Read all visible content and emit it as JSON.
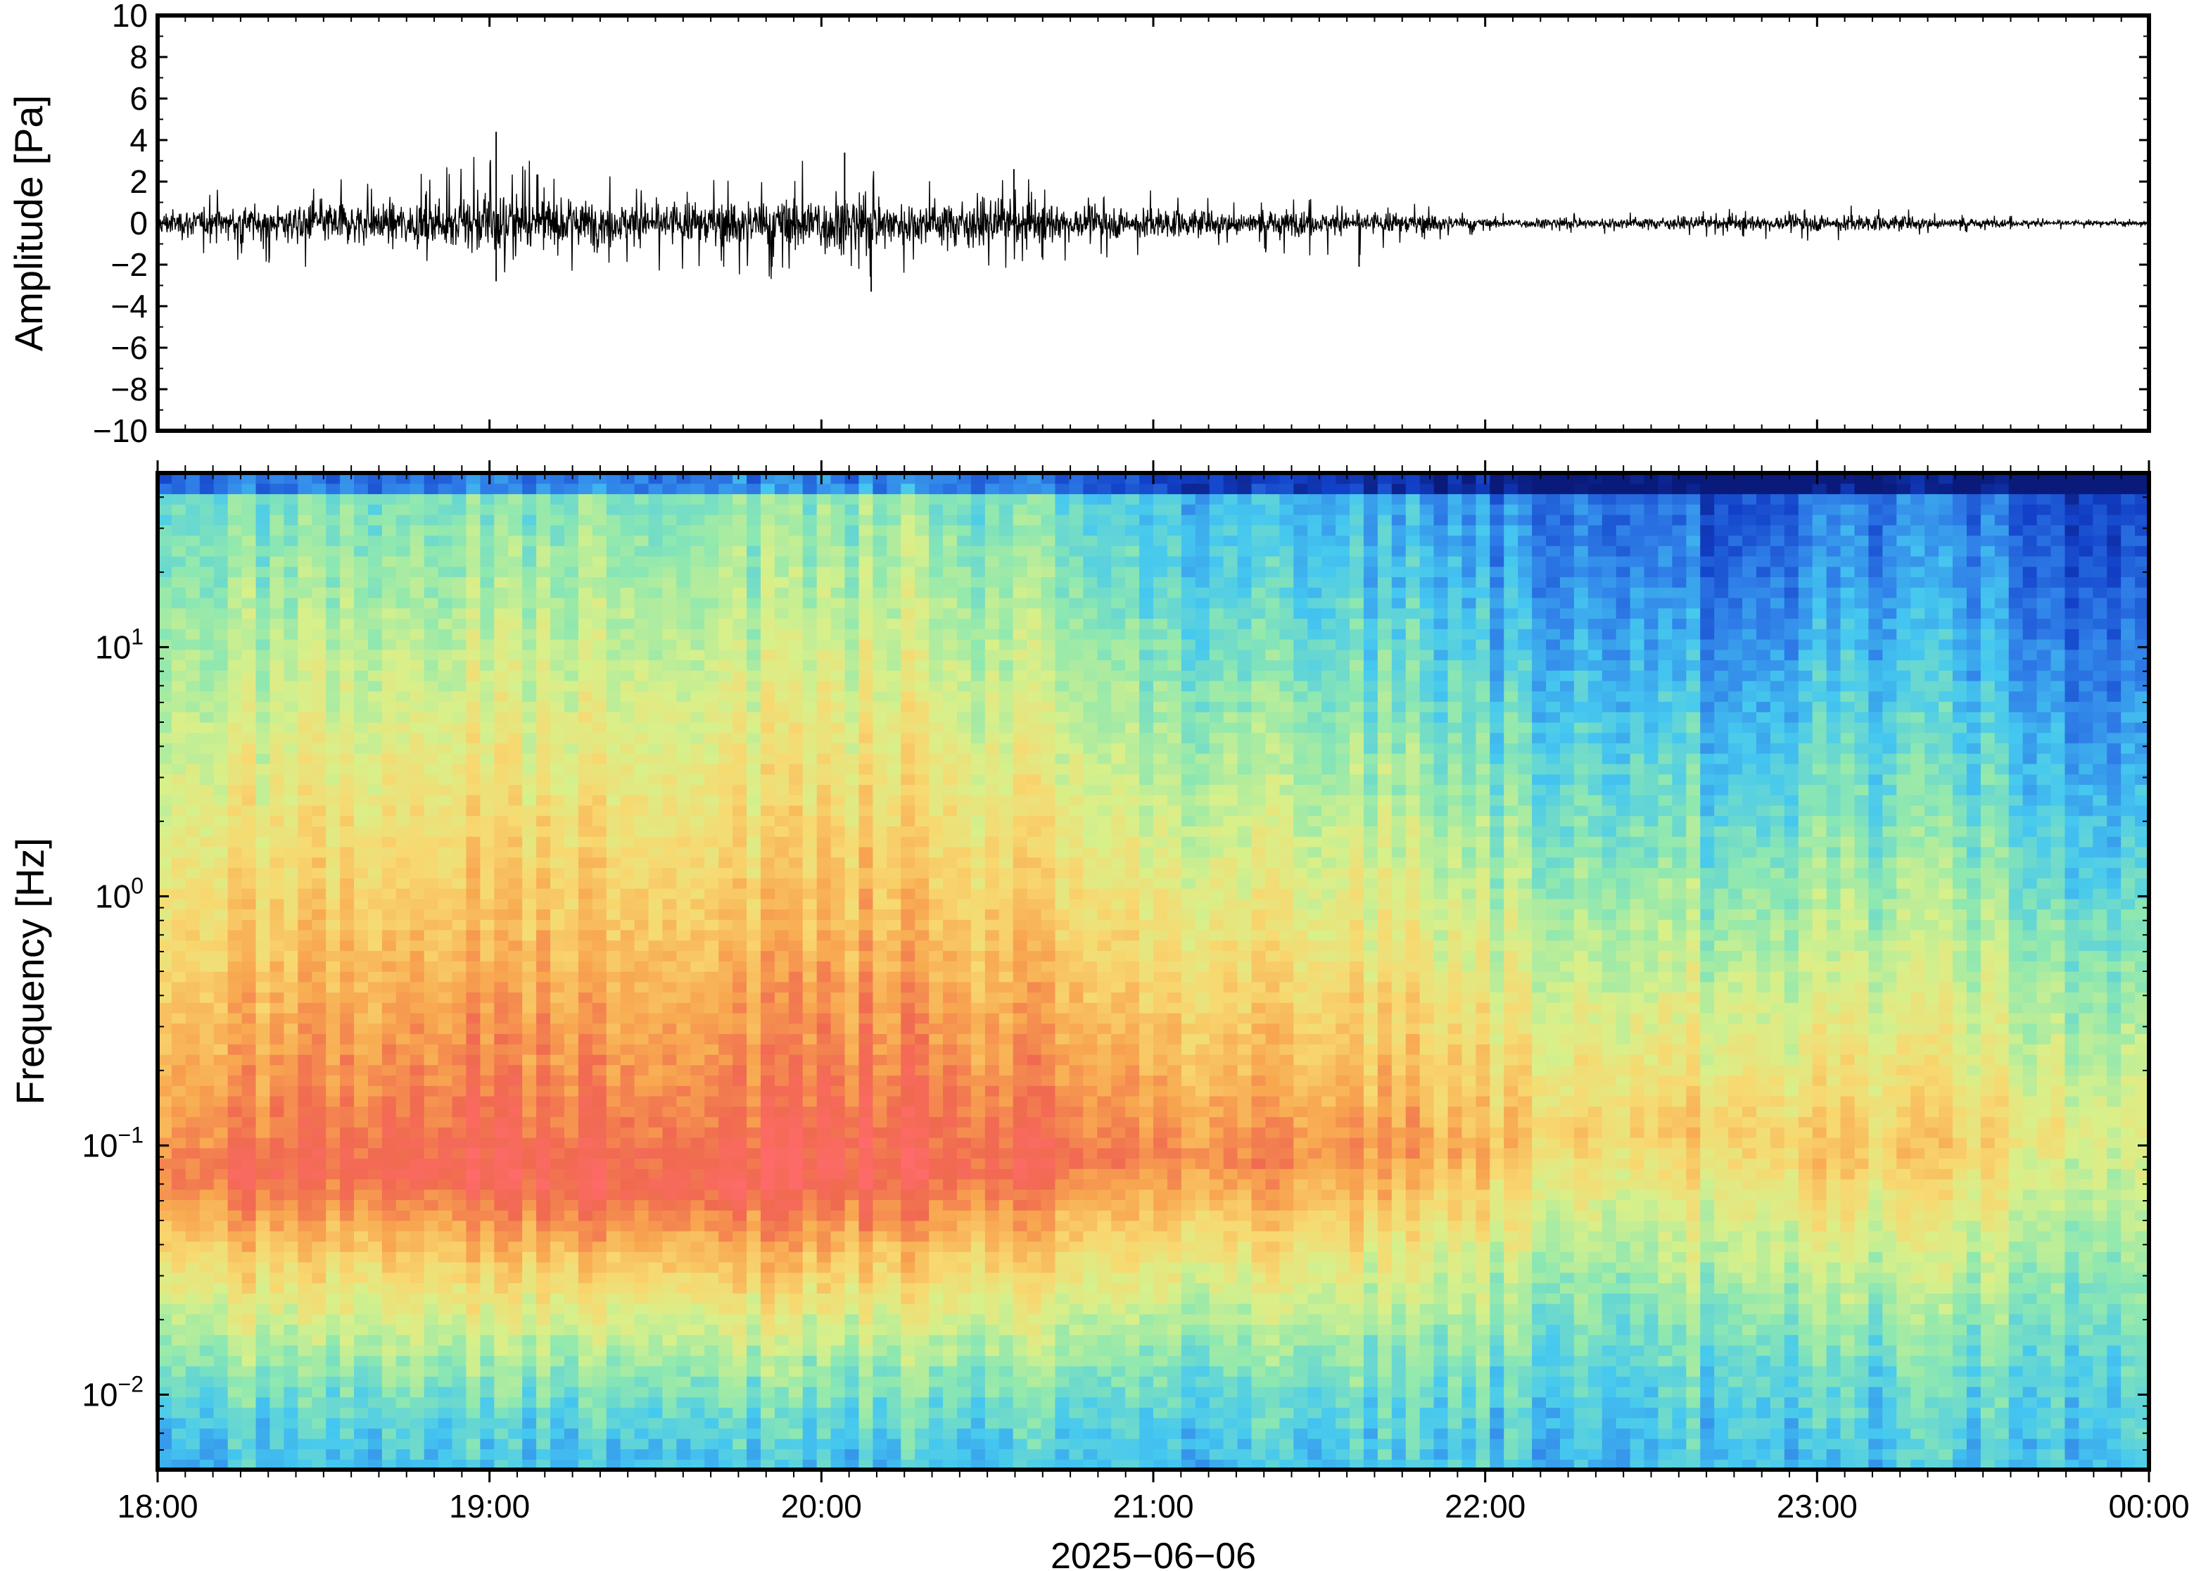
{
  "chart_data": [
    {
      "type": "line",
      "ylabel": "Amplitude [Pa]",
      "ylim": [
        -10,
        10
      ],
      "yticks": [
        "10",
        "8",
        "6",
        "4",
        "2",
        "0",
        "−2",
        "−4",
        "−6",
        "−8",
        "−10"
      ],
      "xlim": [
        "2025-06-06T18:00",
        "2025-06-07T00:00"
      ],
      "grid": false,
      "series": [
        {
          "x_hours": [
            18.0,
            18.25,
            18.5,
            18.75,
            19.0,
            19.25,
            19.5,
            19.75,
            20.0,
            20.25,
            20.5,
            20.75,
            21.0,
            21.25,
            21.5,
            21.75,
            22.0,
            22.25,
            22.5,
            22.75,
            23.0,
            23.25,
            23.5,
            23.75,
            24.0
          ],
          "envelope_pos": [
            1.3,
            1.8,
            2.2,
            2.2,
            3.5,
            2.5,
            2.2,
            2.3,
            3.3,
            2.2,
            2.5,
            1.8,
            1.6,
            1.3,
            1.2,
            1.1,
            0.5,
            0.5,
            0.6,
            0.7,
            0.9,
            0.8,
            0.4,
            0.3,
            0.2
          ],
          "envelope_neg": [
            -1.3,
            -1.8,
            -2.4,
            -2.3,
            -2.8,
            -2.4,
            -2.3,
            -2.6,
            -3.2,
            -2.5,
            -2.3,
            -1.8,
            -1.6,
            -1.3,
            -2.0,
            -1.1,
            -0.5,
            -0.5,
            -0.6,
            -0.7,
            -0.9,
            -0.8,
            -0.4,
            -0.3,
            -0.2
          ],
          "peaks": [
            {
              "x_hours": 19.02,
              "y": 4.4
            },
            {
              "x_hours": 19.02,
              "y": -2.8
            },
            {
              "x_hours": 20.07,
              "y": 3.4
            },
            {
              "x_hours": 20.15,
              "y": -3.3
            },
            {
              "x_hours": 21.62,
              "y": -2.1
            },
            {
              "x_hours": 20.58,
              "y": 2.6
            }
          ]
        }
      ]
    },
    {
      "type": "heatmap",
      "ylabel": "Frequency [Hz]",
      "xlabel": "2025−06−06",
      "yscale": "log",
      "ylim": [
        0.005,
        50
      ],
      "yticks": [
        {
          "base": "10",
          "exp": "1",
          "value": 10
        },
        {
          "base": "10",
          "exp": "0",
          "value": 1
        },
        {
          "base": "10",
          "exp": "−1",
          "value": 0.1
        },
        {
          "base": "10",
          "exp": "−2",
          "value": 0.01
        }
      ],
      "xticks": [
        "18:00",
        "19:00",
        "20:00",
        "21:00",
        "22:00",
        "23:00",
        "00:00"
      ],
      "colormap": [
        "#0a1a7a",
        "#1240c8",
        "#2f7ee8",
        "#45c8f0",
        "#8ee8b0",
        "#d8f08a",
        "#f8d870",
        "#f8a850",
        "#f06a50",
        "#ff6a6a"
      ],
      "peak_frequency_hz": [
        0.07,
        0.075,
        0.08,
        0.08,
        0.08,
        0.07,
        0.07,
        0.07,
        0.08,
        0.08,
        0.08,
        0.09,
        0.09,
        0.09,
        0.09,
        0.1,
        0.1,
        0.12,
        0.12,
        0.12,
        0.09,
        0.1,
        0.1,
        0.12,
        0.12
      ],
      "peak_level": [
        0.88,
        0.9,
        0.92,
        0.92,
        0.96,
        0.95,
        0.92,
        0.93,
        0.97,
        0.94,
        0.92,
        0.88,
        0.86,
        0.84,
        0.82,
        0.8,
        0.74,
        0.7,
        0.7,
        0.68,
        0.72,
        0.7,
        0.66,
        0.6,
        0.56
      ],
      "high_freq_level": [
        0.42,
        0.4,
        0.42,
        0.4,
        0.42,
        0.44,
        0.42,
        0.42,
        0.44,
        0.44,
        0.4,
        0.36,
        0.32,
        0.3,
        0.28,
        0.26,
        0.22,
        0.2,
        0.2,
        0.1,
        0.2,
        0.2,
        0.18,
        0.1,
        0.08
      ]
    }
  ]
}
